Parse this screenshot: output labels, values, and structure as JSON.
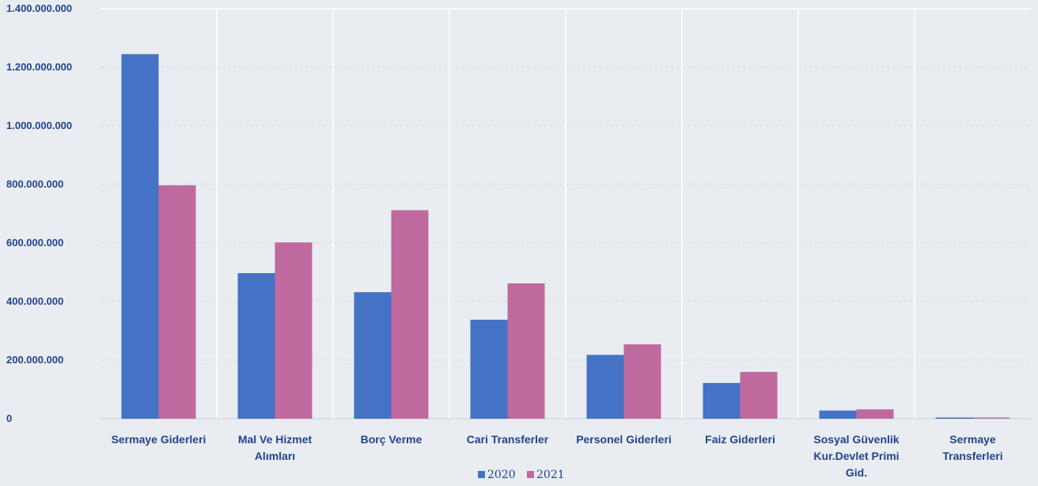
{
  "chart_data": {
    "type": "bar",
    "categories": [
      "Sermaye Giderleri",
      "Mal Ve Hizmet Alımları",
      "Borç Verme",
      "Cari Transferler",
      "Personel Giderleri",
      "Faiz Giderleri",
      "Sosyal Güvenlik Kur.Devlet Primi Gid.",
      "Sermaye Transferleri"
    ],
    "category_lines": [
      [
        "Sermaye Giderleri"
      ],
      [
        "Mal Ve Hizmet",
        "Alımları"
      ],
      [
        "Borç Verme"
      ],
      [
        "Cari Transferler"
      ],
      [
        "Personel Giderleri"
      ],
      [
        "Faiz Giderleri"
      ],
      [
        "Sosyal Güvenlik",
        "Kur.Devlet Primi",
        "Gid."
      ],
      [
        "Sermaye",
        "Transferleri"
      ]
    ],
    "series": [
      {
        "name": "2020",
        "color": "#4472c4",
        "values": [
          1245000000,
          497000000,
          432000000,
          338000000,
          218000000,
          122000000,
          28000000,
          4000000
        ]
      },
      {
        "name": "2021",
        "color": "#c0699f",
        "values": [
          797000000,
          602000000,
          712000000,
          462000000,
          254000000,
          160000000,
          32000000,
          4000000
        ]
      }
    ],
    "yticks": [
      "0",
      "200.000.000",
      "400.000.000",
      "600.000.000",
      "800.000.000",
      "1.000.000.000",
      "1.200.000.000",
      "1.400.000.000"
    ],
    "ylim": [
      0,
      1400000000
    ],
    "legend_position": "bottom",
    "grid": true
  }
}
